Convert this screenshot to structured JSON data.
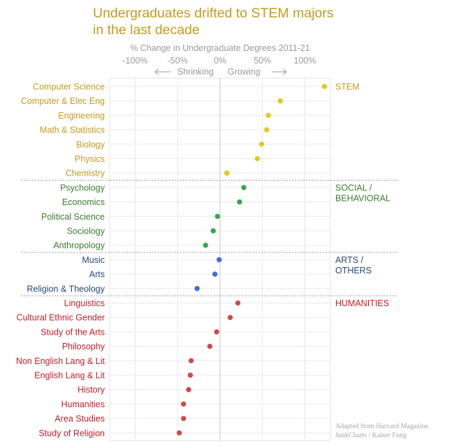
{
  "title_lines": [
    "Undergraduates drifted to STEM majors",
    "in the last decade"
  ],
  "credit_lines": [
    "Adapted from Harvard Magazine.",
    "JunkCharts / Kaiser Fung"
  ],
  "chart_data": {
    "type": "scatter",
    "xlabel": "% Change in Undergraduate Degrees 2011-21",
    "xlim": [
      -130,
      130
    ],
    "x_ticks": [
      -100,
      -50,
      0,
      50,
      100
    ],
    "x_tick_labels": [
      "-100%",
      "-50%",
      "0%",
      "50%",
      "100%"
    ],
    "direction_labels": {
      "negative": "Shrinking",
      "positive": "Growing"
    },
    "grid": true,
    "groups": [
      {
        "name": "STEM",
        "label_lines": [
          "STEM"
        ],
        "color": "#e2c91c",
        "text_color": "#c39b1c"
      },
      {
        "name": "SOCIAL / BEHAVIORAL",
        "label_lines": [
          "SOCIAL /",
          "BEHAVIORAL"
        ],
        "color": "#34a84a",
        "text_color": "#3d7c2f"
      },
      {
        "name": "ARTS / OTHERS",
        "label_lines": [
          "ARTS /",
          "OTHERS"
        ],
        "color": "#3d6fd1",
        "text_color": "#24487a"
      },
      {
        "name": "HUMANITIES",
        "label_lines": [
          "HUMANITIES"
        ],
        "color": "#d2494d",
        "text_color": "#c21e2a"
      }
    ],
    "points": [
      {
        "category": "Computer Science",
        "group": 0,
        "value": 123
      },
      {
        "category": "Computer & Elec Eng",
        "group": 0,
        "value": 71
      },
      {
        "category": "Engineering",
        "group": 0,
        "value": 57
      },
      {
        "category": "Math & Statistics",
        "group": 0,
        "value": 55
      },
      {
        "category": "Biology",
        "group": 0,
        "value": 49
      },
      {
        "category": "Physics",
        "group": 0,
        "value": 44
      },
      {
        "category": "Chemistry",
        "group": 0,
        "value": 8
      },
      {
        "category": "Psychology",
        "group": 1,
        "value": 28
      },
      {
        "category": "Economics",
        "group": 1,
        "value": 23
      },
      {
        "category": "Political Science",
        "group": 1,
        "value": -3
      },
      {
        "category": "Sociology",
        "group": 1,
        "value": -8
      },
      {
        "category": "Anthropology",
        "group": 1,
        "value": -17
      },
      {
        "category": "Music",
        "group": 2,
        "value": -1
      },
      {
        "category": "Arts",
        "group": 2,
        "value": -6
      },
      {
        "category": "Religion & Theology",
        "group": 2,
        "value": -27
      },
      {
        "category": "Linguistics",
        "group": 3,
        "value": 21
      },
      {
        "category": "Cultural Ethnic Gender",
        "group": 3,
        "value": 12
      },
      {
        "category": "Study of the Arts",
        "group": 3,
        "value": -4
      },
      {
        "category": "Philosophy",
        "group": 3,
        "value": -12
      },
      {
        "category": "Non English Lang & Lit",
        "group": 3,
        "value": -34
      },
      {
        "category": "English Lang & Lit",
        "group": 3,
        "value": -35
      },
      {
        "category": "History",
        "group": 3,
        "value": -37
      },
      {
        "category": "Humanities",
        "group": 3,
        "value": -43
      },
      {
        "category": "Area Studies",
        "group": 3,
        "value": -43
      },
      {
        "category": "Study of Religion",
        "group": 3,
        "value": -48
      }
    ]
  }
}
